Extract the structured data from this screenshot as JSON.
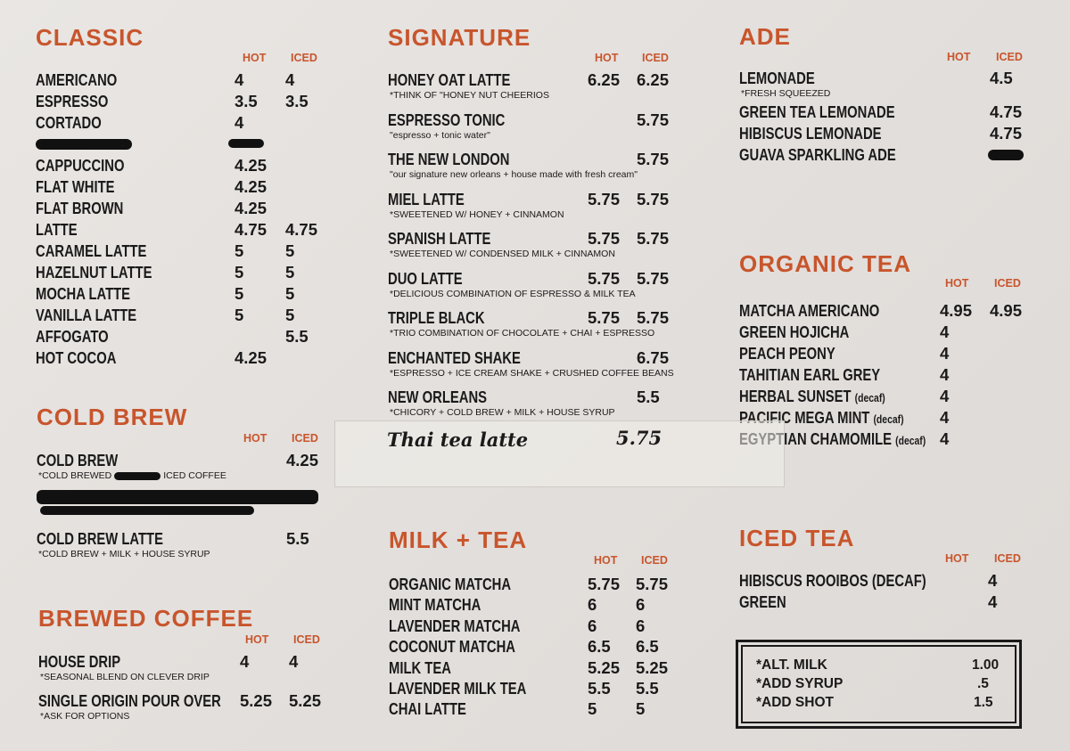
{
  "columns": {
    "hot": "HOT",
    "iced": "ICED"
  },
  "sections": [
    {
      "id": "classic",
      "title": "CLASSIC",
      "items": [
        {
          "name": "AMERICANO",
          "hot": "4",
          "iced": "4"
        },
        {
          "name": "ESPRESSO",
          "hot": "3.5",
          "iced": "3.5"
        },
        {
          "name": "CORTADO",
          "hot": "4"
        },
        {
          "redacted": true
        },
        {
          "name": "CAPPUCCINO",
          "hot": "4.25"
        },
        {
          "name": "FLAT WHITE",
          "hot": "4.25"
        },
        {
          "name": "FLAT BROWN",
          "hot": "4.25"
        },
        {
          "name": "LATTE",
          "hot": "4.75",
          "iced": "4.75"
        },
        {
          "name": "CARAMEL LATTE",
          "hot": "5",
          "iced": "5"
        },
        {
          "name": "HAZELNUT LATTE",
          "hot": "5",
          "iced": "5"
        },
        {
          "name": "MOCHA LATTE",
          "hot": "5",
          "iced": "5"
        },
        {
          "name": "VANILLA LATTE",
          "hot": "5",
          "iced": "5"
        },
        {
          "name": "AFFOGATO",
          "iced": "5.5"
        },
        {
          "name": "HOT COCOA",
          "hot": "4.25"
        }
      ]
    },
    {
      "id": "cold-brew",
      "title": "COLD BREW",
      "items": [
        {
          "name": "COLD BREW",
          "iced": "4.25",
          "note": "*COLD BREWED",
          "note_after": "ICED COFFEE",
          "note_redacted": true
        },
        {
          "redacted_block": true
        },
        {
          "name": "COLD BREW LATTE",
          "iced": "5.5",
          "note": "*COLD BREW + MILK + HOUSE SYRUP"
        }
      ]
    },
    {
      "id": "brewed-coffee",
      "title": "BREWED COFFEE",
      "items": [
        {
          "name": "HOUSE DRIP",
          "hot": "4",
          "iced": "4",
          "note": "*SEASONAL BLEND ON CLEVER DRIP"
        },
        {
          "name": "SINGLE ORIGIN POUR OVER",
          "hot": "5.25",
          "iced": "5.25",
          "note": "*ASK FOR OPTIONS"
        }
      ]
    },
    {
      "id": "signature",
      "title": "SIGNATURE",
      "items": [
        {
          "name": "HONEY OAT LATTE",
          "hot": "6.25",
          "iced": "6.25",
          "note": "*THINK OF \"HONEY NUT CHEERIOS"
        },
        {
          "name": "ESPRESSO TONIC",
          "iced": "5.75",
          "note": "\"espresso + tonic water\""
        },
        {
          "name": "THE NEW LONDON",
          "iced": "5.75",
          "note": "\"our signature new orleans + house made with fresh cream\""
        },
        {
          "name": "MIEL LATTE",
          "hot": "5.75",
          "iced": "5.75",
          "note": "*SWEETENED W/ HONEY + CINNAMON"
        },
        {
          "name": "SPANISH LATTE",
          "hot": "5.75",
          "iced": "5.75",
          "note": "*SWEETENED W/ CONDENSED MILK + CINNAMON"
        },
        {
          "name": "DUO LATTE",
          "hot": "5.75",
          "iced": "5.75",
          "note": "*DELICIOUS COMBINATION OF ESPRESSO & MILK TEA"
        },
        {
          "name": "TRIPLE BLACK",
          "hot": "5.75",
          "iced": "5.75",
          "note": "*TRIO COMBINATION OF CHOCOLATE + CHAI + ESPRESSO"
        },
        {
          "name": "ENCHANTED SHAKE",
          "iced": "6.75",
          "note": "*ESPRESSO + ICE CREAM SHAKE + CRUSHED COFFEE BEANS"
        },
        {
          "name": "NEW ORLEANS",
          "iced": "5.5",
          "note": "*CHICORY + COLD BREW + MILK + HOUSE SYRUP"
        }
      ]
    },
    {
      "id": "milk-tea",
      "title": "MILK + TEA",
      "items": [
        {
          "name": "ORGANIC MATCHA",
          "hot": "5.75",
          "iced": "5.75"
        },
        {
          "name": "MINT MATCHA",
          "hot": "6",
          "iced": "6"
        },
        {
          "name": "LAVENDER MATCHA",
          "hot": "6",
          "iced": "6"
        },
        {
          "name": "COCONUT MATCHA",
          "hot": "6.5",
          "iced": "6.5"
        },
        {
          "name": "MILK TEA",
          "hot": "5.25",
          "iced": "5.25"
        },
        {
          "name": "LAVENDER MILK TEA",
          "hot": "5.5",
          "iced": "5.5"
        },
        {
          "name": "CHAI LATTE",
          "hot": "5",
          "iced": "5"
        }
      ]
    },
    {
      "id": "ade",
      "title": "ADE",
      "items": [
        {
          "name": "LEMONADE",
          "iced": "4.5",
          "note": "*FRESH SQUEEZED"
        },
        {
          "name": "GREEN TEA LEMONADE",
          "iced": "4.75"
        },
        {
          "name": "HIBISCUS LEMONADE",
          "iced": "4.75"
        },
        {
          "name": "GUAVA SPARKLING ADE",
          "iced_redacted": true
        }
      ]
    },
    {
      "id": "organic-tea",
      "title": "ORGANIC TEA",
      "items": [
        {
          "name": "MATCHA  AMERICANO",
          "hot": "4.95",
          "iced": "4.95"
        },
        {
          "name": "GREEN HOJICHA",
          "hot": "4"
        },
        {
          "name": "PEACH PEONY",
          "hot": "4"
        },
        {
          "name": "TAHITIAN EARL GREY",
          "hot": "4"
        },
        {
          "name": "HERBAL SUNSET",
          "tag": "(decaf)",
          "hot": "4"
        },
        {
          "name": "PACIFIC MEGA MINT",
          "tag": "(decaf)",
          "hot": "4"
        },
        {
          "name": "EGYPTIAN CHAMOMILE",
          "tag": "(decaf)",
          "hot": "4"
        }
      ]
    },
    {
      "id": "iced-tea",
      "title": "ICED TEA",
      "items": [
        {
          "name": "HIBISCUS ROOIBOS (DECAF)",
          "iced": "4"
        },
        {
          "name": "GREEN",
          "iced": "4"
        }
      ]
    }
  ],
  "handwritten": {
    "name": "Thai tea latte",
    "price": "5.75"
  },
  "addons": [
    {
      "name": "*ALT. MILK",
      "price": "1.00"
    },
    {
      "name": "*ADD SYRUP",
      "price": ".5"
    },
    {
      "name": "*ADD SHOT",
      "price": "1.5"
    }
  ],
  "colors": {
    "accent": "#c8552c",
    "text": "#1b1a1a",
    "paper": "#e4e0dd"
  }
}
